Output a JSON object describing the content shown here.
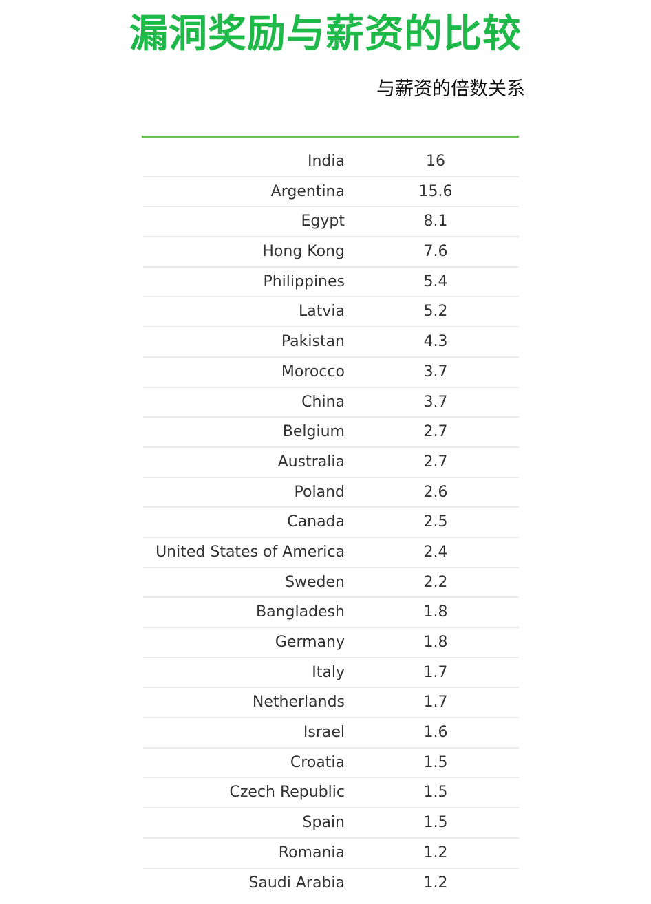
{
  "title": "漏洞奖励与薪资的比较",
  "colors": {
    "title": "#1fb94a",
    "rule": "#6cbf5a",
    "text": "#333333",
    "divider": "#ebebeb"
  },
  "chart_data": {
    "type": "table",
    "title": "漏洞奖励与薪资的比较",
    "columns": [
      "",
      "与薪资的倍数关系"
    ],
    "categories": [
      "India",
      "Argentina",
      "Egypt",
      "Hong Kong",
      "Philippines",
      "Latvia",
      "Pakistan",
      "Morocco",
      "China",
      "Belgium",
      "Australia",
      "Poland",
      "Canada",
      "United States of America",
      "Sweden",
      "Bangladesh",
      "Germany",
      "Italy",
      "Netherlands",
      "Israel",
      "Croatia",
      "Czech Republic",
      "Spain",
      "Romania",
      "Saudi Arabia"
    ],
    "values": [
      "16",
      "15.6",
      "8.1",
      "7.6",
      "5.4",
      "5.2",
      "4.3",
      "3.7",
      "3.7",
      "2.7",
      "2.7",
      "2.6",
      "2.5",
      "2.4",
      "2.2",
      "1.8",
      "1.8",
      "1.7",
      "1.7",
      "1.6",
      "1.5",
      "1.5",
      "1.5",
      "1.2",
      "1.2"
    ]
  }
}
